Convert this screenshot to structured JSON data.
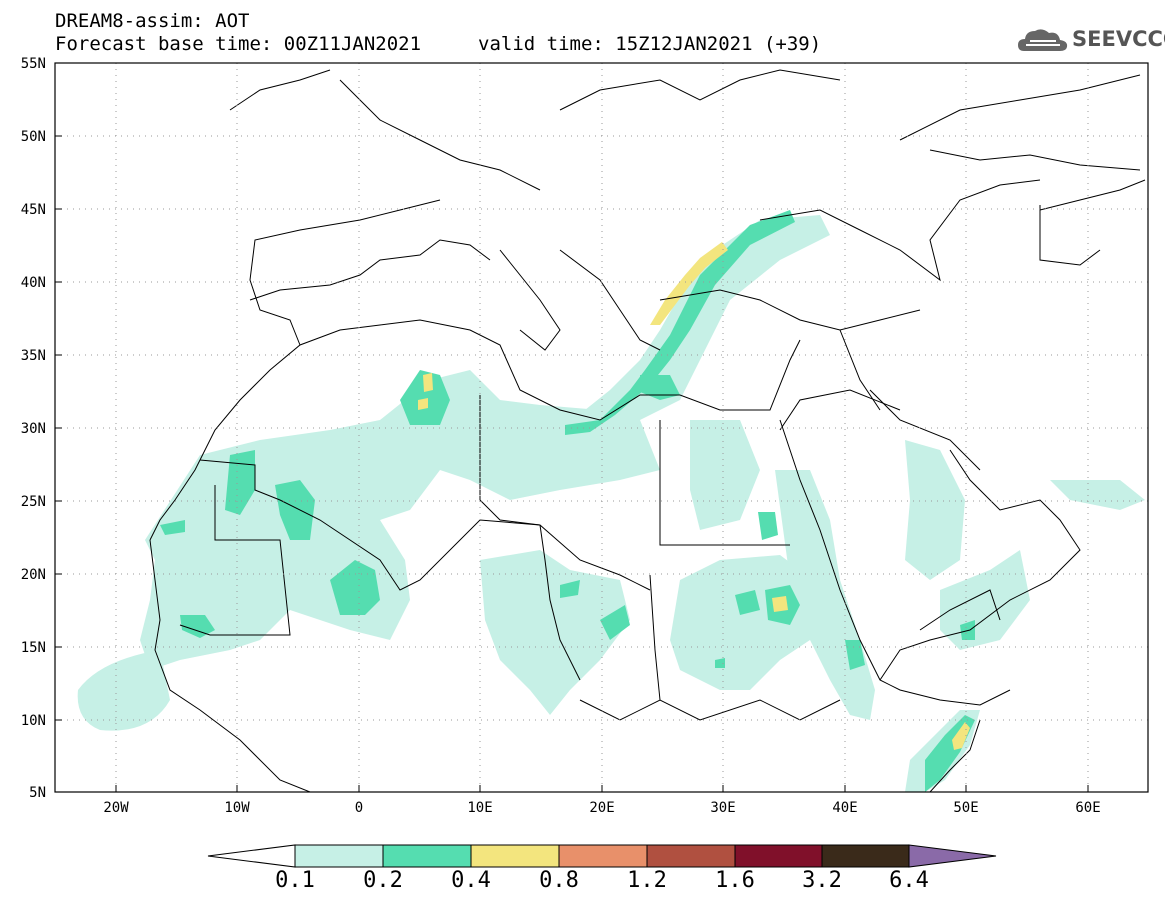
{
  "header": {
    "title": "DREAM8-assim: AOT",
    "base_time": "Forecast base time: 00Z11JAN2021",
    "valid_time": "valid time: 15Z12JAN2021 (+39)"
  },
  "logo": {
    "text": "SEEVCCC",
    "icon": "cloud-icon"
  },
  "map": {
    "lat_labels": [
      "55N",
      "50N",
      "45N",
      "40N",
      "35N",
      "30N",
      "25N",
      "20N",
      "15N",
      "10N",
      "5N"
    ],
    "lon_labels": [
      "20W",
      "10W",
      "0",
      "10E",
      "20E",
      "30E",
      "40E",
      "50E",
      "60E"
    ]
  },
  "colorbar": {
    "levels": [
      "0.1",
      "0.2",
      "0.4",
      "0.8",
      "1.2",
      "1.6",
      "3.2",
      "6.4"
    ],
    "colors": [
      "#c6f0e6",
      "#55ddb0",
      "#f3e57e",
      "#e8906a",
      "#b05040",
      "#80102a",
      "#3a2a1a",
      "#8a6aa8"
    ]
  }
}
